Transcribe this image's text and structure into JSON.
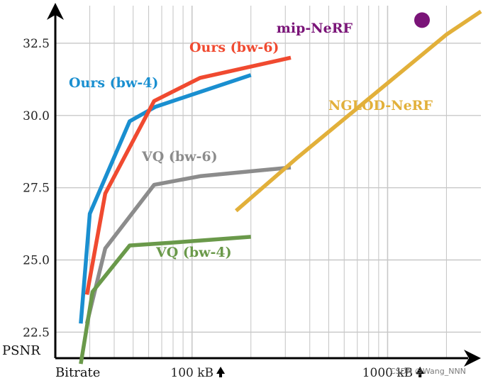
{
  "chart_data": {
    "type": "line",
    "x_scale": "log",
    "xlabel": "Bitrate",
    "ylabel": "PSNR",
    "xlim": [
      20,
      3000
    ],
    "ylim": [
      21.6,
      33.8
    ],
    "grid": true,
    "x_ticks": [
      {
        "value": 100,
        "label": "100 kB",
        "arrow": true
      },
      {
        "value": 1000,
        "label": "1000 kB",
        "arrow": true
      }
    ],
    "y_ticks": [
      {
        "value": 22.5,
        "label": "22.5"
      },
      {
        "value": 25.0,
        "label": "25.0"
      },
      {
        "value": 27.5,
        "label": "27.5"
      },
      {
        "value": 30.0,
        "label": "30.0"
      },
      {
        "value": 32.5,
        "label": "32.5"
      }
    ],
    "series": [
      {
        "name": "Ours (bw-4)",
        "color": "#1a8fd0",
        "points": [
          [
            27,
            22.8
          ],
          [
            30,
            26.6
          ],
          [
            48,
            29.8
          ],
          [
            65,
            30.3
          ],
          [
            200,
            31.4
          ]
        ]
      },
      {
        "name": "Ours (bw-6)",
        "color": "#f04a30",
        "points": [
          [
            29,
            23.8
          ],
          [
            36,
            27.3
          ],
          [
            64,
            30.5
          ],
          [
            110,
            31.3
          ],
          [
            320,
            32.0
          ]
        ]
      },
      {
        "name": "VQ (bw-6)",
        "color": "#8c8c8c",
        "points": [
          [
            29,
            22.8
          ],
          [
            36,
            25.4
          ],
          [
            64,
            27.6
          ],
          [
            110,
            27.9
          ],
          [
            320,
            28.2
          ]
        ]
      },
      {
        "name": "VQ (bw-4)",
        "color": "#6a994a",
        "points": [
          [
            27,
            21.4
          ],
          [
            31,
            23.9
          ],
          [
            48,
            25.5
          ],
          [
            80,
            25.6
          ],
          [
            200,
            25.8
          ]
        ]
      },
      {
        "name": "NGLOD-NeRF",
        "color": "#e2b03a",
        "points": [
          [
            168,
            26.7
          ],
          [
            340,
            28.5
          ],
          [
            2000,
            32.8
          ],
          [
            3000,
            33.6
          ]
        ]
      },
      {
        "name": "mip-NeRF",
        "color": "#7a1478",
        "marker": "circle",
        "points": [
          [
            1500,
            33.3
          ]
        ]
      }
    ]
  },
  "watermark": "CSDN @Wang_NNN"
}
